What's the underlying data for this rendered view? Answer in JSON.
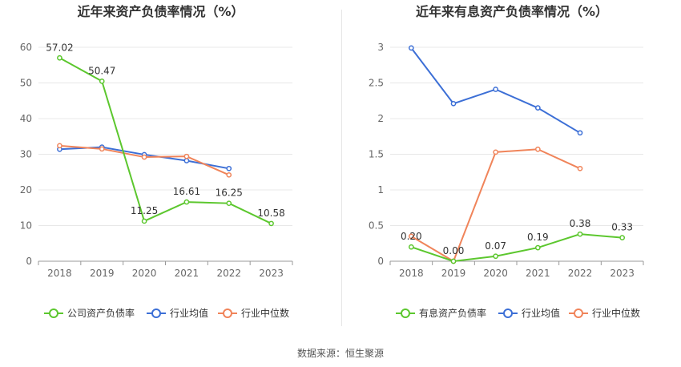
{
  "source": "数据来源：恒生聚源",
  "colors": {
    "company": "#5cc72e",
    "avg": "#3c6fd6",
    "median": "#f0845a",
    "grid": "#e8e8e8",
    "axis": "#999999"
  },
  "chart_data": [
    {
      "type": "line",
      "title": "近年来资产负债率情况（%）",
      "categories": [
        "2018",
        "2019",
        "2020",
        "2021",
        "2022",
        "2023"
      ],
      "ylim": [
        0,
        60
      ],
      "yticks": [
        "0",
        "10",
        "20",
        "30",
        "40",
        "50",
        "60"
      ],
      "series": [
        {
          "name": "公司资产负债率",
          "values": [
            57.02,
            50.47,
            11.25,
            16.61,
            16.25,
            10.58
          ],
          "labels": [
            "57.02",
            "50.47",
            "11.25",
            "16.61",
            "16.25",
            "10.58"
          ]
        },
        {
          "name": "行业均值",
          "values": [
            31.4,
            32.0,
            29.9,
            28.2,
            26.0,
            null
          ]
        },
        {
          "name": "行业中位数",
          "values": [
            32.4,
            31.5,
            29.2,
            29.4,
            24.2,
            null
          ]
        }
      ],
      "legend": "bottom"
    },
    {
      "type": "line",
      "title": "近年来有息资产负债率情况（%）",
      "categories": [
        "2018",
        "2019",
        "2020",
        "2021",
        "2022",
        "2023"
      ],
      "ylim": [
        0,
        3
      ],
      "yticks": [
        "0",
        "0.5",
        "1",
        "1.5",
        "2",
        "2.5",
        "3"
      ],
      "series": [
        {
          "name": "有息资产负债率",
          "values": [
            0.2,
            0.0,
            0.07,
            0.19,
            0.38,
            0.33
          ],
          "labels": [
            "0.20",
            "0.00",
            "0.07",
            "0.19",
            "0.38",
            "0.33"
          ]
        },
        {
          "name": "行业均值",
          "values": [
            2.99,
            2.21,
            2.41,
            2.15,
            1.8,
            null
          ]
        },
        {
          "name": "行业中位数",
          "values": [
            0.35,
            0.0,
            1.53,
            1.57,
            1.3,
            null
          ]
        }
      ],
      "legend": "bottom"
    }
  ]
}
